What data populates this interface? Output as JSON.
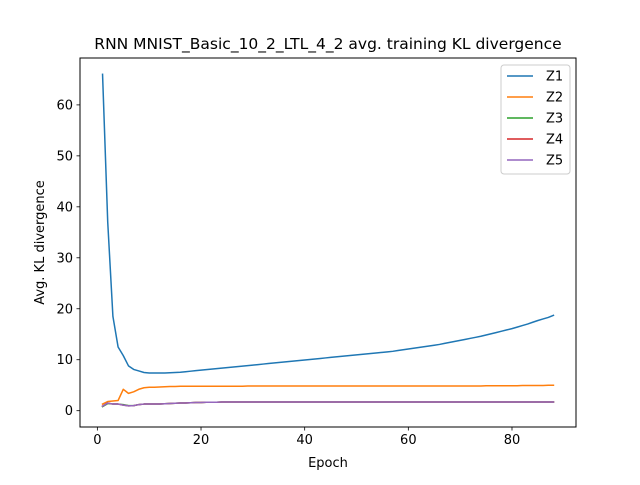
{
  "chart_data": {
    "type": "line",
    "title": "RNN MNIST_Basic_10_2_LTL_4_2 avg. training KL divergence",
    "xlabel": "Epoch",
    "ylabel": "Avg. KL divergence",
    "xlim": [
      -3.35,
      92.35
    ],
    "ylim": [
      -3.2,
      69.2
    ],
    "xticks": [
      0,
      20,
      40,
      60,
      80
    ],
    "yticks": [
      0,
      10,
      20,
      30,
      40,
      50,
      60
    ],
    "grid": false,
    "legend_position": "top-right",
    "x": [
      1,
      2,
      3,
      4,
      5,
      6,
      7,
      8,
      9,
      10,
      11,
      12,
      13,
      14,
      15,
      16,
      17,
      18,
      19,
      20,
      21,
      22,
      23,
      24,
      25,
      26,
      27,
      28,
      29,
      30,
      31,
      32,
      33,
      34,
      35,
      36,
      37,
      38,
      39,
      40,
      41,
      42,
      43,
      44,
      45,
      46,
      47,
      48,
      49,
      50,
      51,
      52,
      53,
      54,
      55,
      56,
      57,
      58,
      59,
      60,
      61,
      62,
      63,
      64,
      65,
      66,
      67,
      68,
      69,
      70,
      71,
      72,
      73,
      74,
      75,
      76,
      77,
      78,
      79,
      80,
      81,
      82,
      83,
      84,
      85,
      86,
      87,
      88
    ],
    "series": [
      {
        "name": "Z1",
        "color": "#1f77b4",
        "values": [
          66.0,
          37.0,
          18.5,
          12.5,
          10.8,
          8.8,
          8.1,
          7.8,
          7.5,
          7.4,
          7.4,
          7.4,
          7.4,
          7.45,
          7.5,
          7.55,
          7.65,
          7.75,
          7.85,
          7.95,
          8.05,
          8.15,
          8.25,
          8.35,
          8.45,
          8.55,
          8.65,
          8.75,
          8.85,
          8.95,
          9.05,
          9.15,
          9.25,
          9.35,
          9.45,
          9.55,
          9.65,
          9.75,
          9.85,
          9.95,
          10.05,
          10.15,
          10.25,
          10.35,
          10.45,
          10.55,
          10.65,
          10.75,
          10.85,
          10.95,
          11.05,
          11.15,
          11.25,
          11.35,
          11.45,
          11.55,
          11.65,
          11.8,
          11.95,
          12.1,
          12.25,
          12.4,
          12.55,
          12.7,
          12.85,
          13.0,
          13.2,
          13.4,
          13.6,
          13.8,
          14.0,
          14.2,
          14.4,
          14.6,
          14.85,
          15.1,
          15.35,
          15.6,
          15.85,
          16.1,
          16.4,
          16.7,
          17.0,
          17.35,
          17.7,
          18.0,
          18.3,
          18.7
        ]
      },
      {
        "name": "Z2",
        "color": "#ff7f0e",
        "values": [
          1.3,
          1.8,
          1.9,
          2.0,
          4.2,
          3.4,
          3.7,
          4.2,
          4.5,
          4.6,
          4.6,
          4.65,
          4.7,
          4.75,
          4.75,
          4.8,
          4.8,
          4.8,
          4.8,
          4.8,
          4.8,
          4.8,
          4.8,
          4.8,
          4.8,
          4.8,
          4.8,
          4.8,
          4.85,
          4.85,
          4.85,
          4.85,
          4.85,
          4.85,
          4.85,
          4.85,
          4.85,
          4.85,
          4.85,
          4.85,
          4.85,
          4.85,
          4.85,
          4.85,
          4.85,
          4.85,
          4.85,
          4.85,
          4.85,
          4.85,
          4.85,
          4.85,
          4.85,
          4.85,
          4.85,
          4.85,
          4.85,
          4.85,
          4.85,
          4.85,
          4.85,
          4.85,
          4.85,
          4.85,
          4.85,
          4.85,
          4.85,
          4.85,
          4.85,
          4.85,
          4.85,
          4.85,
          4.85,
          4.85,
          4.9,
          4.9,
          4.9,
          4.9,
          4.9,
          4.9,
          4.9,
          4.95,
          4.95,
          4.95,
          4.95,
          4.95,
          5.0,
          5.0
        ]
      },
      {
        "name": "Z3",
        "color": "#2ca02c",
        "values": [
          0.8,
          1.4,
          1.3,
          1.3,
          1.2,
          1.0,
          1.0,
          1.2,
          1.3,
          1.3,
          1.3,
          1.3,
          1.35,
          1.4,
          1.45,
          1.5,
          1.5,
          1.55,
          1.6,
          1.6,
          1.65,
          1.65,
          1.65,
          1.7,
          1.7,
          1.7,
          1.7,
          1.7,
          1.7,
          1.7,
          1.7,
          1.7,
          1.7,
          1.7,
          1.7,
          1.7,
          1.7,
          1.7,
          1.7,
          1.7,
          1.7,
          1.7,
          1.7,
          1.7,
          1.7,
          1.7,
          1.7,
          1.7,
          1.7,
          1.7,
          1.7,
          1.7,
          1.7,
          1.7,
          1.7,
          1.7,
          1.7,
          1.7,
          1.7,
          1.7,
          1.7,
          1.7,
          1.7,
          1.7,
          1.7,
          1.7,
          1.7,
          1.7,
          1.7,
          1.7,
          1.7,
          1.7,
          1.7,
          1.7,
          1.7,
          1.7,
          1.7,
          1.7,
          1.7,
          1.7,
          1.7,
          1.7,
          1.7,
          1.7,
          1.7,
          1.7,
          1.7,
          1.7
        ]
      },
      {
        "name": "Z4",
        "color": "#d62728",
        "values": [
          0.9,
          1.5,
          1.3,
          1.3,
          1.1,
          0.95,
          1.0,
          1.2,
          1.3,
          1.3,
          1.3,
          1.3,
          1.35,
          1.4,
          1.45,
          1.5,
          1.5,
          1.55,
          1.6,
          1.6,
          1.65,
          1.65,
          1.65,
          1.7,
          1.7,
          1.7,
          1.7,
          1.7,
          1.7,
          1.7,
          1.7,
          1.7,
          1.7,
          1.7,
          1.7,
          1.7,
          1.7,
          1.7,
          1.7,
          1.7,
          1.7,
          1.7,
          1.7,
          1.7,
          1.7,
          1.7,
          1.7,
          1.7,
          1.7,
          1.7,
          1.7,
          1.7,
          1.7,
          1.7,
          1.7,
          1.7,
          1.7,
          1.7,
          1.7,
          1.7,
          1.7,
          1.7,
          1.7,
          1.7,
          1.7,
          1.7,
          1.7,
          1.7,
          1.7,
          1.7,
          1.7,
          1.7,
          1.7,
          1.7,
          1.7,
          1.7,
          1.7,
          1.7,
          1.7,
          1.7,
          1.7,
          1.7,
          1.7,
          1.7,
          1.7,
          1.7,
          1.7,
          1.7
        ]
      },
      {
        "name": "Z5",
        "color": "#9467bd",
        "values": [
          0.9,
          1.5,
          1.3,
          1.3,
          1.1,
          0.95,
          1.0,
          1.2,
          1.3,
          1.3,
          1.3,
          1.3,
          1.35,
          1.4,
          1.45,
          1.5,
          1.5,
          1.55,
          1.6,
          1.6,
          1.65,
          1.65,
          1.65,
          1.7,
          1.7,
          1.7,
          1.7,
          1.7,
          1.7,
          1.7,
          1.7,
          1.7,
          1.7,
          1.7,
          1.7,
          1.7,
          1.7,
          1.7,
          1.7,
          1.7,
          1.7,
          1.7,
          1.7,
          1.7,
          1.7,
          1.7,
          1.7,
          1.7,
          1.7,
          1.7,
          1.7,
          1.7,
          1.7,
          1.7,
          1.7,
          1.7,
          1.7,
          1.7,
          1.7,
          1.7,
          1.7,
          1.7,
          1.7,
          1.7,
          1.7,
          1.7,
          1.7,
          1.7,
          1.7,
          1.7,
          1.7,
          1.7,
          1.7,
          1.7,
          1.7,
          1.7,
          1.7,
          1.7,
          1.7,
          1.7,
          1.7,
          1.7,
          1.7,
          1.7,
          1.7,
          1.7,
          1.7,
          1.7
        ]
      }
    ]
  }
}
